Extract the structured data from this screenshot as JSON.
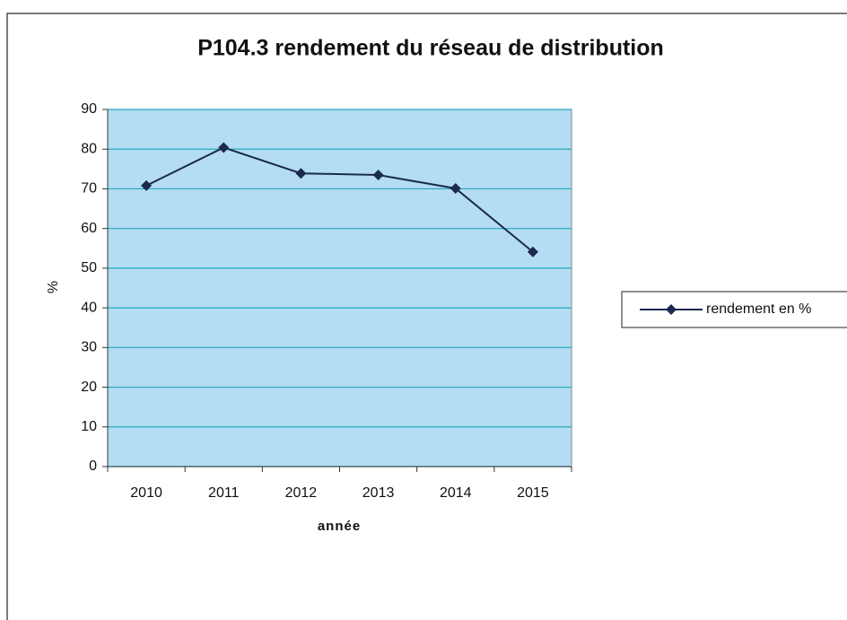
{
  "chart_data": {
    "type": "line",
    "title": "P104.3 rendement du réseau de distribution",
    "x_label": "année",
    "y_label": "%",
    "categories": [
      "2010",
      "2011",
      "2012",
      "2013",
      "2014",
      "2015"
    ],
    "series": [
      {
        "name": "rendement en %",
        "color": "#1b2a4e",
        "values": [
          70.8,
          80.4,
          73.9,
          73.5,
          70.1,
          54.1
        ]
      }
    ],
    "ylim": [
      0,
      90
    ],
    "yticks": [
      0,
      10,
      20,
      30,
      40,
      50,
      60,
      70,
      80,
      90
    ],
    "grid": true,
    "legend": "right",
    "plot_background": "#b4dcf2",
    "grid_color": "#22a9bd"
  }
}
